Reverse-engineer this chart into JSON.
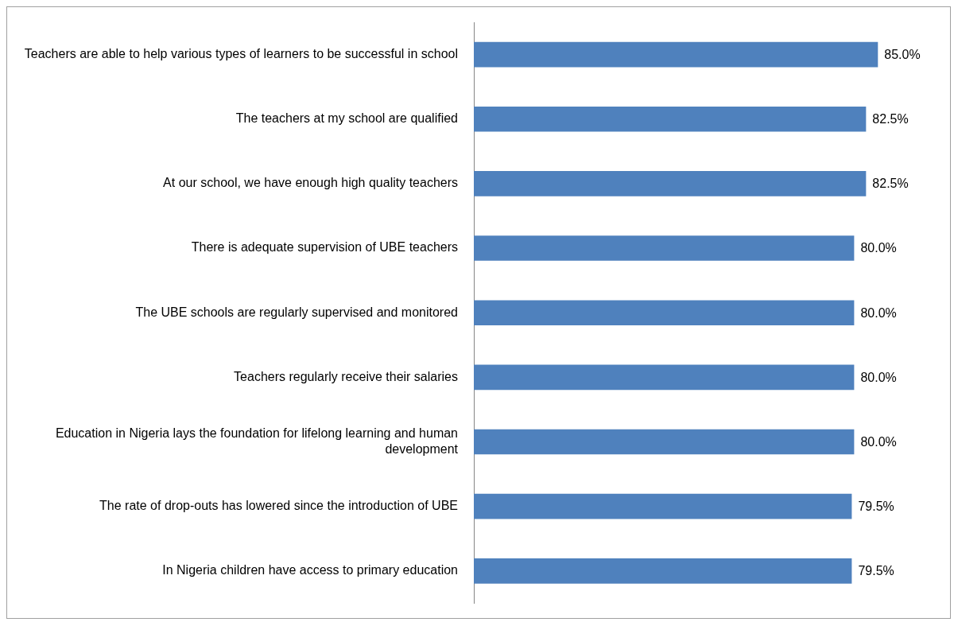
{
  "chart_data": {
    "type": "bar",
    "orientation": "horizontal",
    "categories": [
      "Teachers are able to help various types of learners to be successful in school",
      "The teachers at my school are qualified",
      "At our school, we have enough high quality teachers",
      "There is adequate supervision of UBE teachers",
      "The UBE schools are regularly supervised and monitored",
      "Teachers regularly receive their salaries",
      "Education in Nigeria lays the foundation for lifelong learning and human development",
      "The rate of drop-outs has lowered since the introduction of UBE",
      "In Nigeria children have access to primary education"
    ],
    "values": [
      85.0,
      82.5,
      82.5,
      80.0,
      80.0,
      80.0,
      80.0,
      79.5,
      79.5
    ],
    "value_labels": [
      "85.0%",
      "82.5%",
      "82.5%",
      "80.0%",
      "80.0%",
      "80.0%",
      "80.0%",
      "79.5%",
      "79.5%"
    ],
    "color": "#4f81bd",
    "xlim": [
      0,
      100
    ],
    "tick_labels": "y",
    "grid": false,
    "legend": false
  }
}
